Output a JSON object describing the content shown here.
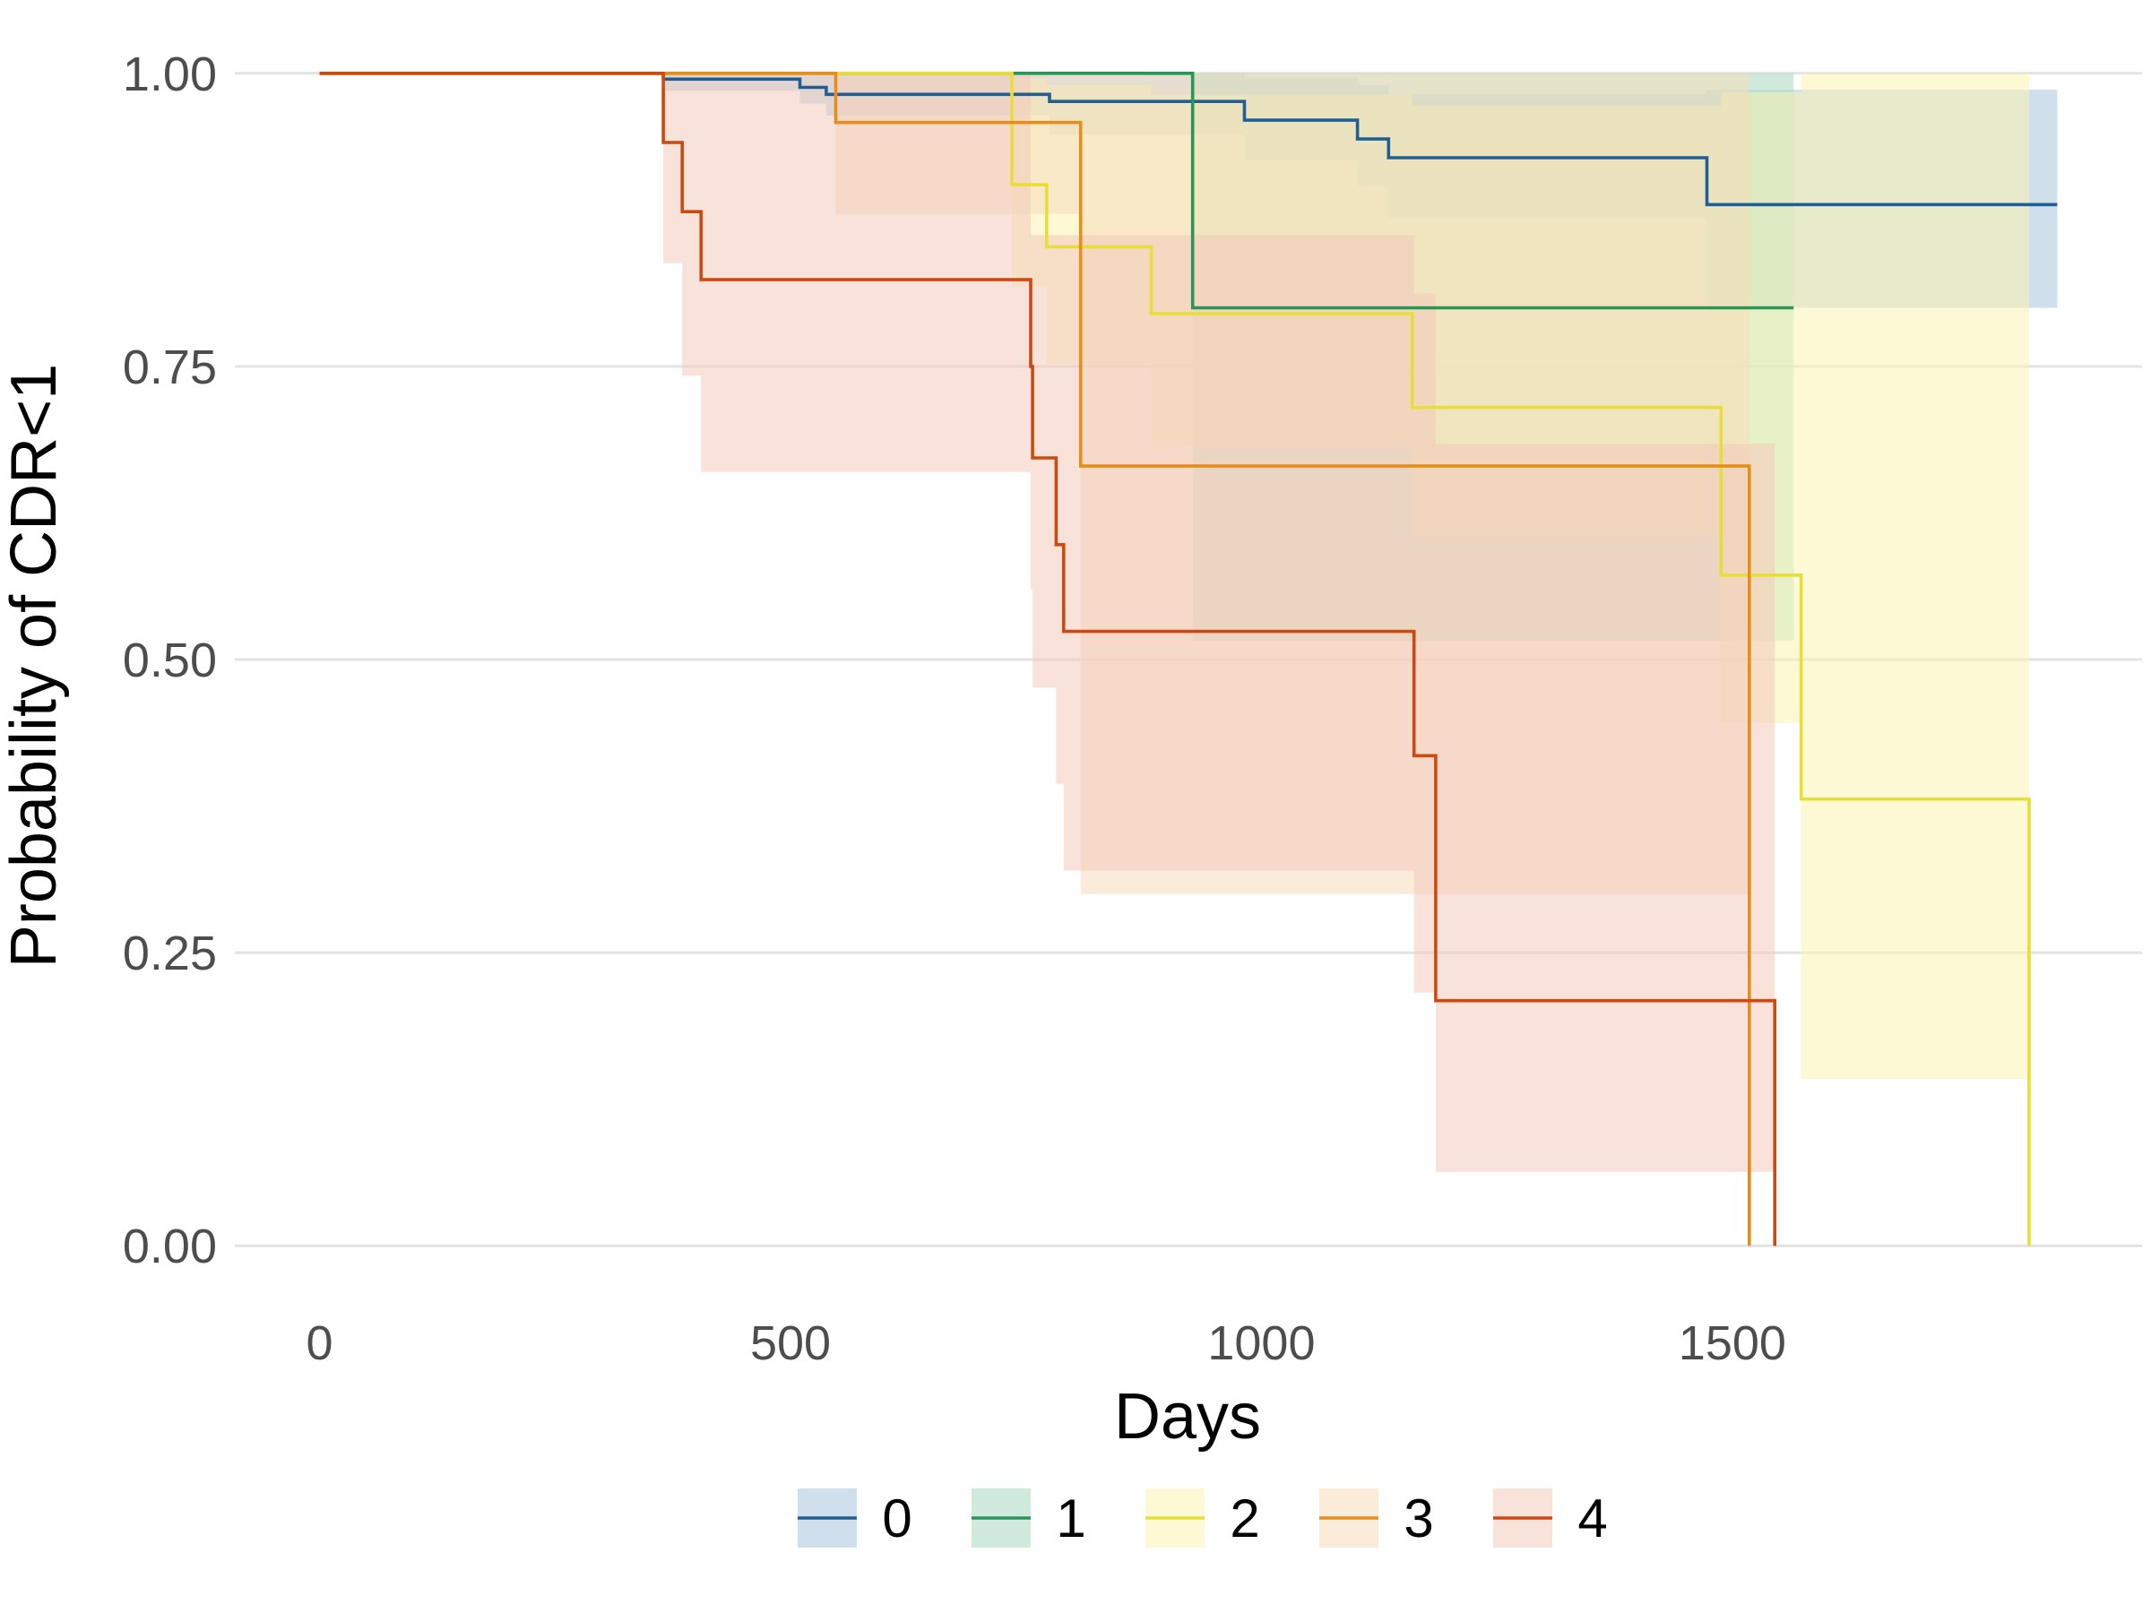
{
  "chart_data": {
    "type": "line",
    "title": "",
    "xlabel": "Days",
    "ylabel": "Probability of CDR<1",
    "xlim": [
      -90,
      1935
    ],
    "ylim": [
      -0.035,
      1.035
    ],
    "x_ticks": [
      0,
      500,
      1000,
      1500
    ],
    "x_tick_labels": [
      "0",
      "500",
      "1000",
      "1500"
    ],
    "y_ticks": [
      0,
      0.25,
      0.5,
      0.75,
      1.0
    ],
    "y_tick_labels": [
      "0.00",
      "0.25",
      "0.50",
      "0.75",
      "1.00"
    ],
    "grid": true,
    "legend_position": "bottom",
    "step": true,
    "series": [
      {
        "name": "0",
        "color": "#1f5f95",
        "fill": "#a9c5dc",
        "x": [
          0,
          365,
          510,
          538,
          775,
          982,
          1102,
          1135,
          1473,
          1845
        ],
        "y": [
          1.0,
          0.995,
          0.988,
          0.982,
          0.976,
          0.96,
          0.944,
          0.928,
          0.888,
          0.888
        ],
        "lower": [
          1.0,
          0.985,
          0.974,
          0.964,
          0.948,
          0.926,
          0.904,
          0.876,
          0.8,
          0.8
        ],
        "upper": [
          1.0,
          1.0,
          1.0,
          1.0,
          1.0,
          0.996,
          0.99,
          0.982,
          0.986,
          0.986
        ]
      },
      {
        "name": "1",
        "color": "#2a9558",
        "fill": "#aadbc3",
        "x": [
          0,
          927,
          1565
        ],
        "y": [
          1.0,
          0.8,
          0.8
        ],
        "lower": [
          1.0,
          0.516,
          0.516
        ],
        "upper": [
          1.0,
          1.0,
          1.0
        ]
      },
      {
        "name": "2",
        "color": "#e8de3a",
        "fill": "#fbf4b0",
        "x": [
          0,
          735,
          772,
          883,
          1160,
          1488,
          1573,
          1815
        ],
        "y": [
          1.0,
          0.905,
          0.852,
          0.795,
          0.715,
          0.572,
          0.381,
          0.0
        ],
        "lower": [
          1.0,
          0.818,
          0.752,
          0.682,
          0.604,
          0.446,
          0.142,
          0.0
        ],
        "upper": [
          1.0,
          0.995,
          0.99,
          0.982,
          0.972,
          0.984,
          1.0,
          0.0
        ]
      },
      {
        "name": "3",
        "color": "#e38e1d",
        "fill": "#f6ddb9",
        "x": [
          0,
          548,
          808,
          1518
        ],
        "y": [
          1.0,
          0.958,
          0.665,
          0.0
        ],
        "lower": [
          1.0,
          0.88,
          0.3,
          0.0
        ],
        "upper": [
          1.0,
          1.0,
          1.0,
          0.0
        ]
      },
      {
        "name": "4",
        "color": "#cc4a10",
        "fill": "#f2cbbb",
        "x": [
          0,
          365,
          385,
          405,
          755,
          757,
          782,
          790,
          1162,
          1185,
          1545
        ],
        "y": [
          1.0,
          0.941,
          0.882,
          0.824,
          0.75,
          0.672,
          0.598,
          0.524,
          0.418,
          0.209,
          0.0
        ],
        "lower": [
          1.0,
          0.838,
          0.742,
          0.66,
          0.56,
          0.476,
          0.394,
          0.32,
          0.216,
          0.063,
          0.0
        ],
        "upper": [
          1.0,
          1.0,
          1.0,
          1.0,
          0.862,
          0.862,
          0.862,
          0.862,
          0.812,
          0.684,
          0.0
        ]
      }
    ]
  }
}
